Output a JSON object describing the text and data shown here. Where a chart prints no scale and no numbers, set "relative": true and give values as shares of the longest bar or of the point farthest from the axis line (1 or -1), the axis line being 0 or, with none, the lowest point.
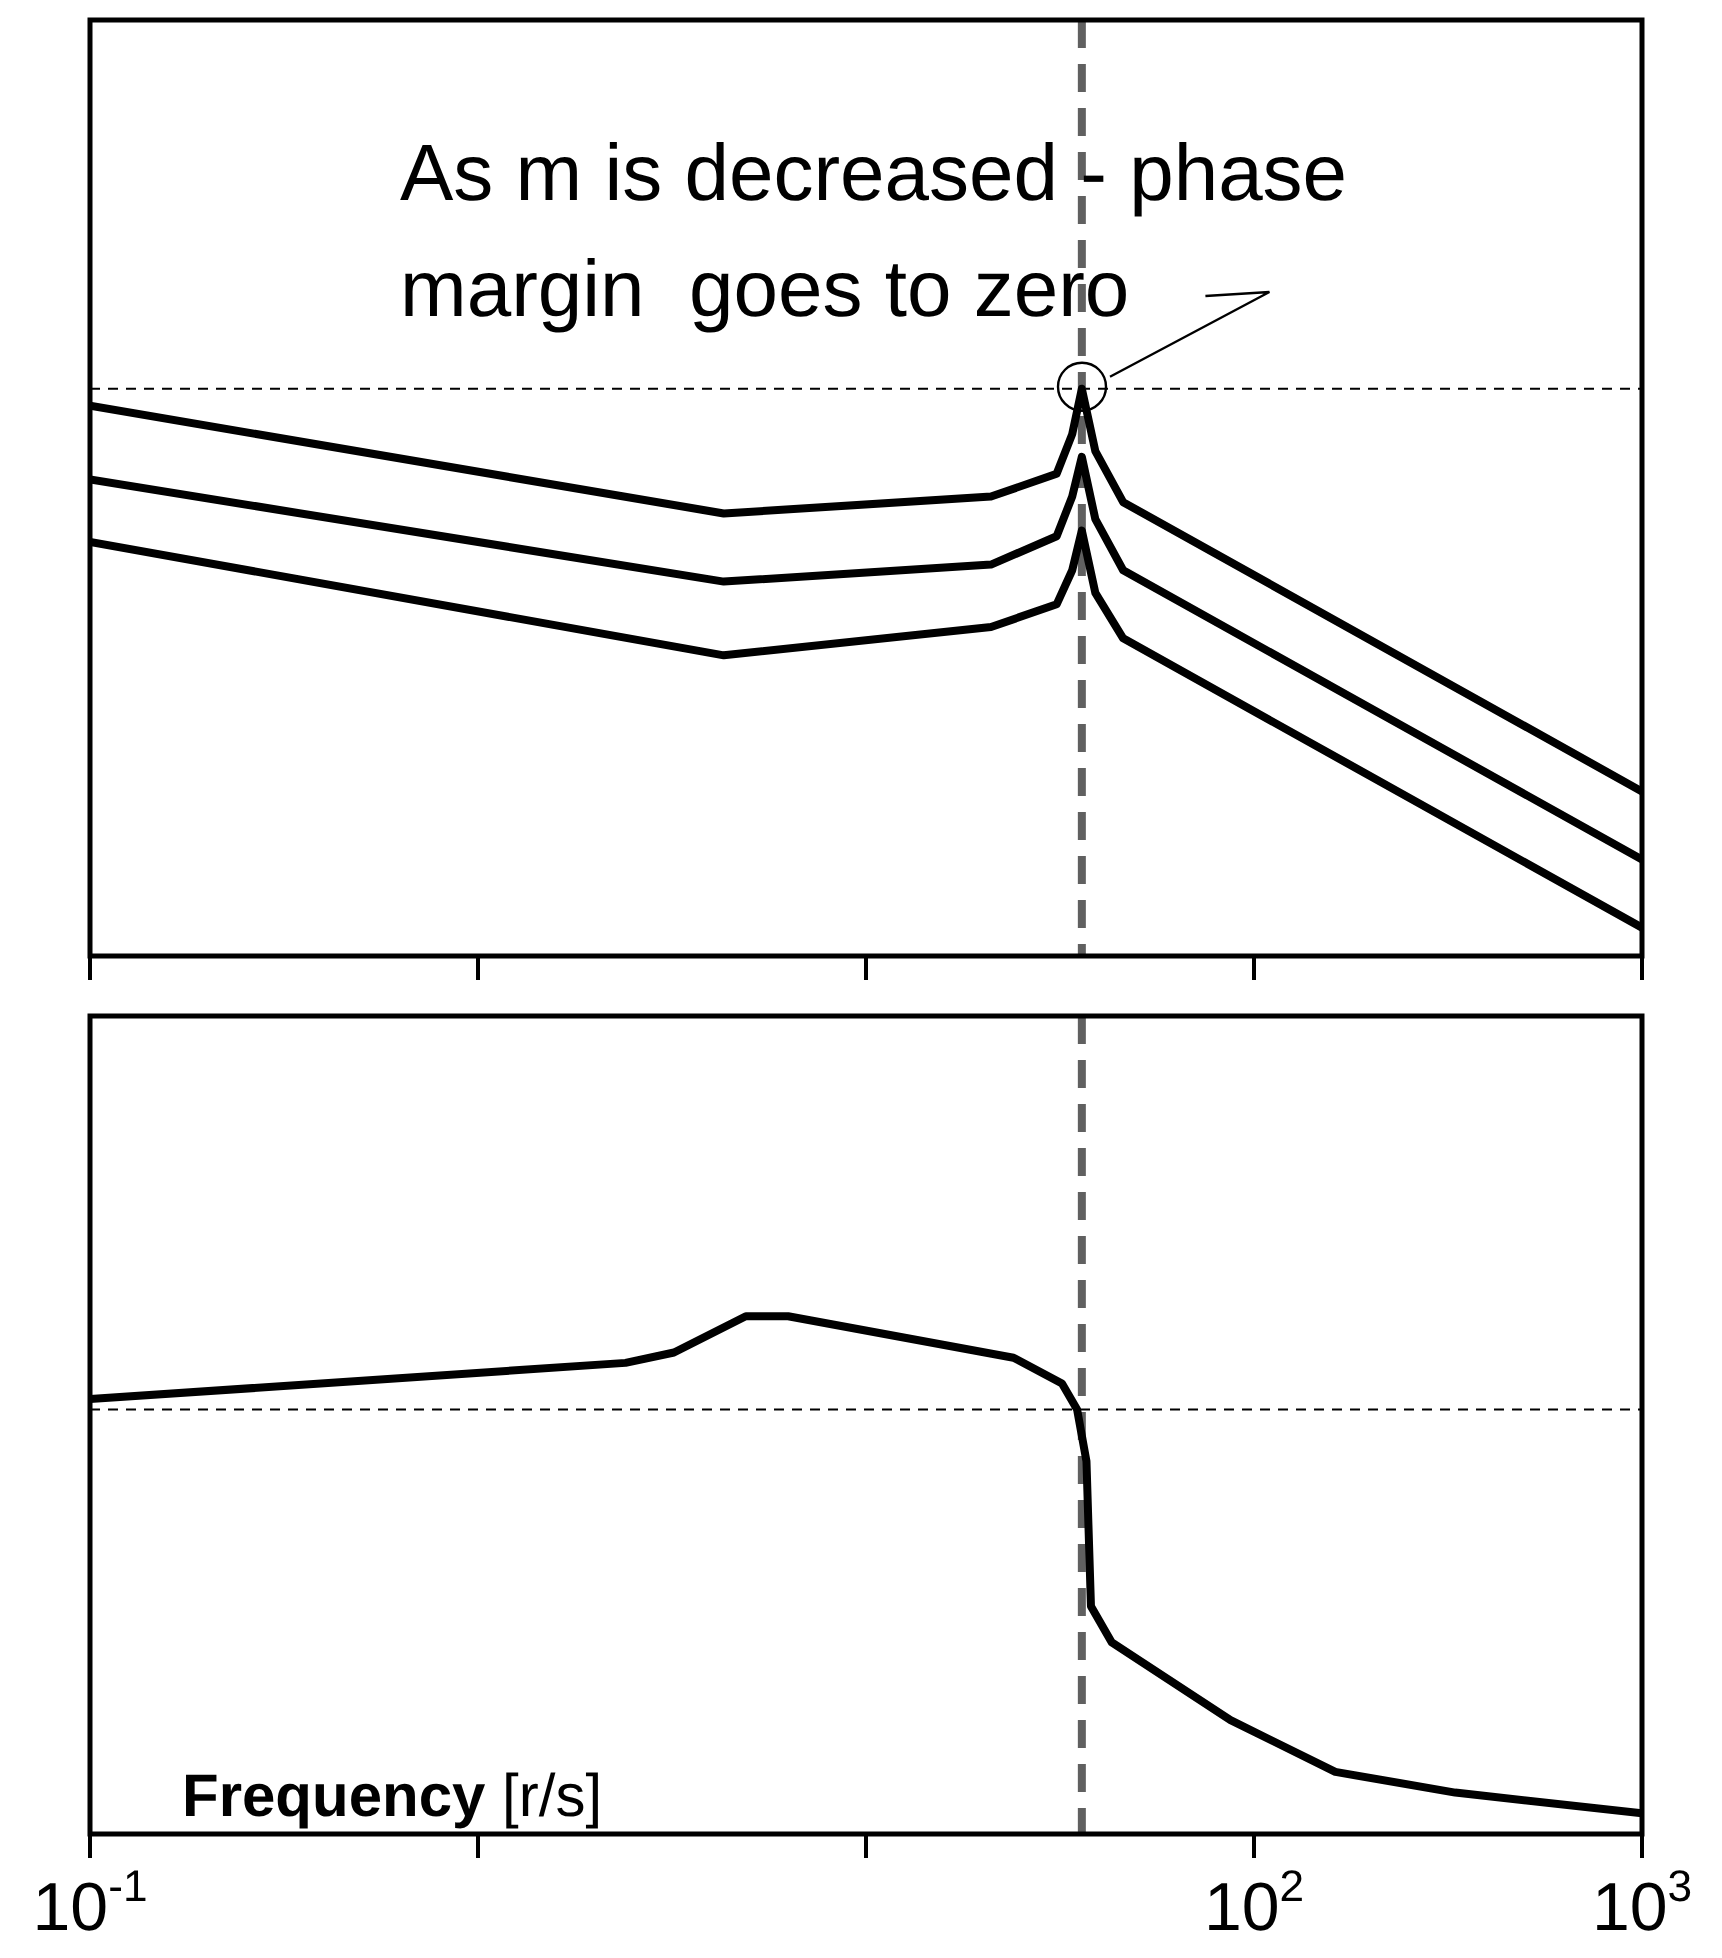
{
  "chart_data": [
    {
      "type": "line",
      "relative": true,
      "log": "x",
      "xlim": [
        0.1,
        1000
      ],
      "xticks": [
        0.1,
        1,
        10,
        100,
        1000
      ],
      "tick_labels": false,
      "grid": false,
      "legend": false,
      "marker": "none",
      "line_style": "solid",
      "series": [
        {
          "color": "#000000",
          "x": [
            0.1,
            4.3,
            21,
            31,
            34,
            36,
            39,
            46,
            1000
          ],
          "values": [
            0.97,
            0.78,
            0.81,
            0.85,
            0.92,
            1,
            0.89,
            0.8,
            0.29
          ]
        },
        {
          "color": "#000000",
          "x": [
            0.1,
            4.3,
            21,
            31,
            34,
            36,
            39,
            46,
            1000
          ],
          "values": [
            0.84,
            0.66,
            0.69,
            0.74,
            0.81,
            0.88,
            0.77,
            0.68,
            0.17
          ]
        },
        {
          "color": "#000000",
          "x": [
            0.1,
            4.3,
            21,
            31,
            34,
            36,
            39,
            46,
            1000
          ],
          "values": [
            0.73,
            0.53,
            0.58,
            0.62,
            0.68,
            0.75,
            0.64,
            0.56,
            0.05
          ]
        }
      ],
      "ref_lines": [
        {
          "axis": "y",
          "value": 1,
          "color": "#000000",
          "line_style": "dashed"
        },
        {
          "axis": "x",
          "value": 36,
          "color": "#606060",
          "line_style": "dashed"
        }
      ],
      "annotations": [
        {
          "text": "As m is decreased - phase margin  goes to zero",
          "x": 36,
          "y": 1
        }
      ]
    },
    {
      "type": "line",
      "relative": true,
      "log": "x",
      "xlim": [
        0.1,
        1000
      ],
      "xticks": [
        {
          "value": 0.1,
          "label": "10$^{-1}$"
        },
        {
          "value": 1,
          "label": null
        },
        {
          "value": 10,
          "label": null
        },
        {
          "value": 100,
          "label": "10$^{2}$"
        },
        {
          "value": 1000,
          "label": "10$^{3}$"
        }
      ],
      "tick_labels": "x",
      "grid": false,
      "legend": false,
      "marker": "none",
      "line_style": "solid",
      "xlabel": "Frequency [r/s]",
      "series": [
        {
          "color": "#000000",
          "x": [
            0.1,
            2.4,
            3.2,
            4.9,
            6.3,
            24,
            32,
            35,
            37,
            38,
            43,
            87,
            162,
            330,
            1000
          ],
          "values": [
            0.84,
            0.91,
            0.93,
            1,
            1,
            0.92,
            0.87,
            0.82,
            0.72,
            0.44,
            0.37,
            0.22,
            0.12,
            0.08,
            0.04
          ]
        }
      ],
      "ref_lines": [
        {
          "axis": "y",
          "value": 0.82,
          "color": "#000000",
          "line_style": "dashed"
        },
        {
          "axis": "x",
          "value": 36,
          "color": "#606060",
          "line_style": "dashed"
        }
      ]
    }
  ]
}
